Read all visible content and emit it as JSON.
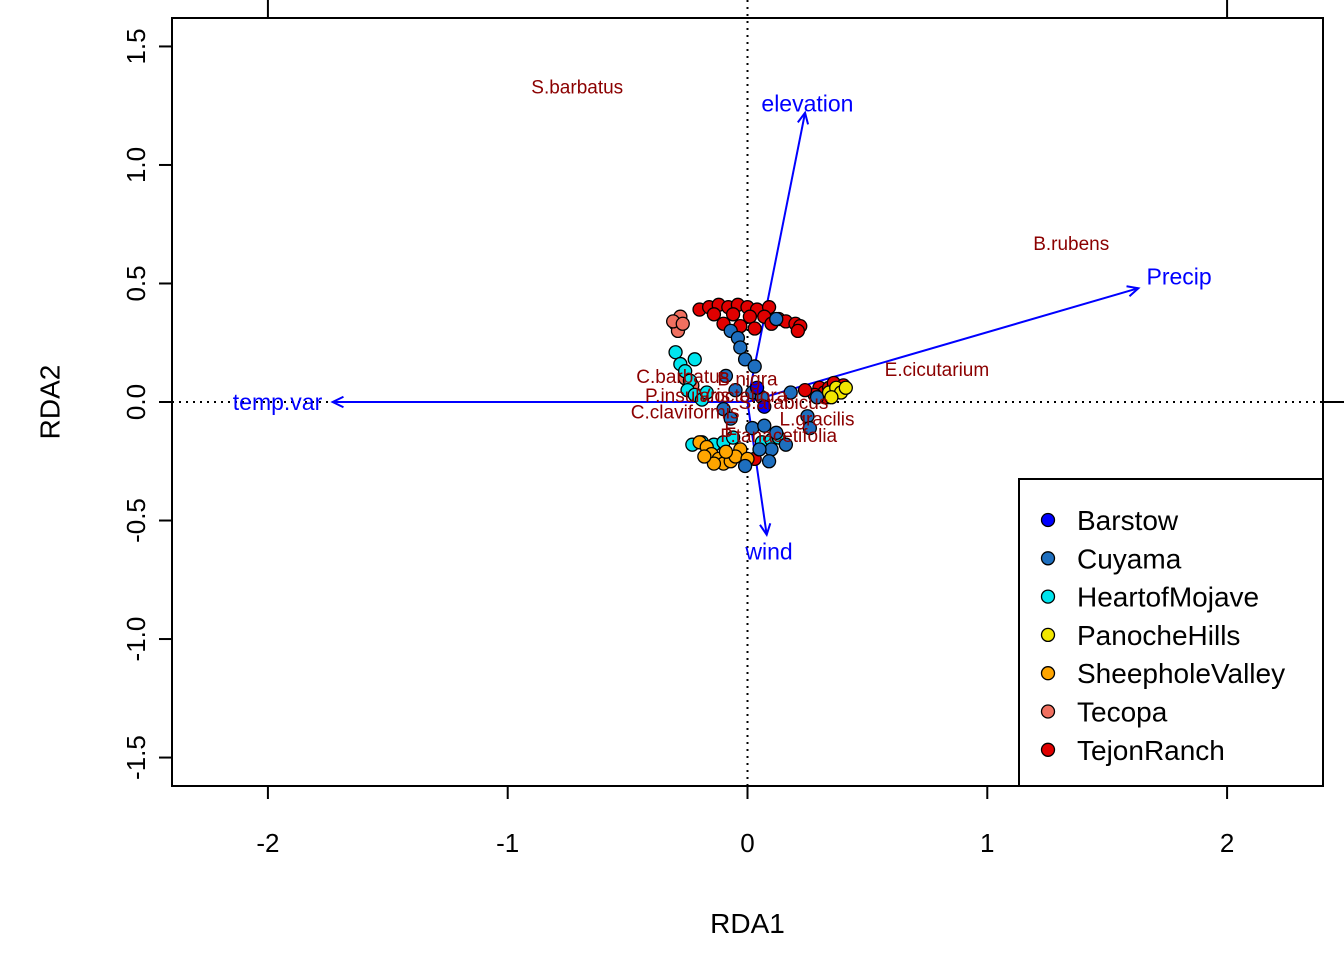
{
  "chart_data": {
    "type": "scatter",
    "subtype": "rda-triplot",
    "xlabel": "RDA1",
    "ylabel": "RDA2",
    "xlim": [
      -2.4,
      2.4
    ],
    "ylim": [
      -1.62,
      1.62
    ],
    "x_ticks": [
      -2,
      -1,
      0,
      1,
      2
    ],
    "y_ticks": [
      -1.5,
      -1.0,
      -0.5,
      0.0,
      0.5,
      1.0,
      1.5
    ],
    "y_tick_labels": [
      "-1.5",
      "-1.0",
      "-0.5",
      "0.0",
      "0.5",
      "1.0",
      "1.5"
    ],
    "grid": false,
    "reference_lines": "dotted lines at x=0 and y=0",
    "colors": {
      "env_vectors": "#0000FF",
      "species_labels": "#8B0000",
      "site_outline": "#000000"
    },
    "env_vectors": [
      {
        "name": "elevation",
        "x": 0.24,
        "y": 1.22,
        "label_x": 0.25,
        "label_y": 1.26
      },
      {
        "name": "Precip",
        "x": 1.63,
        "y": 0.48,
        "label_x": 1.8,
        "label_y": 0.53
      },
      {
        "name": "temp.var",
        "x": -1.73,
        "y": 0.0,
        "label_x": -1.96,
        "label_y": 0.0
      },
      {
        "name": "wind",
        "x": 0.08,
        "y": -0.56,
        "label_x": 0.09,
        "label_y": -0.63
      }
    ],
    "species": [
      {
        "name": "S.barbatus",
        "x": -0.71,
        "y": 1.33
      },
      {
        "name": "B.rubens",
        "x": 1.35,
        "y": 0.67
      },
      {
        "name": "E.cicutarium",
        "x": 0.79,
        "y": 0.14
      },
      {
        "name": "C.barbatus",
        "x": -0.27,
        "y": 0.11
      },
      {
        "name": "B.nigra",
        "x": 0.0,
        "y": 0.1
      },
      {
        "name": "P.insularis",
        "x": -0.25,
        "y": 0.03
      },
      {
        "name": "V.octoflora",
        "x": -0.02,
        "y": 0.03
      },
      {
        "name": "S.arabicus",
        "x": 0.15,
        "y": 0.0
      },
      {
        "name": "C.claviformis",
        "x": -0.26,
        "y": -0.04
      },
      {
        "name": "L.gracilis",
        "x": 0.29,
        "y": -0.07
      },
      {
        "name": "E",
        "x": -0.07,
        "y": -0.11
      },
      {
        "name": "P.tanacetifolia",
        "x": 0.13,
        "y": -0.14
      }
    ],
    "legend": {
      "position": "bottom-right",
      "entries": [
        {
          "name": "Barstow",
          "color": "#0000FF"
        },
        {
          "name": "Cuyama",
          "color": "#1E6FBF"
        },
        {
          "name": "HeartofMojave",
          "color": "#00E5EE"
        },
        {
          "name": "PanocheHills",
          "color": "#F2E600"
        },
        {
          "name": "SheepholeValley",
          "color": "#FFA500"
        },
        {
          "name": "Tecopa",
          "color": "#F07060"
        },
        {
          "name": "TejonRanch",
          "color": "#E00000"
        }
      ]
    },
    "sites": [
      {
        "group": "TejonRanch",
        "points": [
          [
            -0.2,
            0.39
          ],
          [
            -0.16,
            0.4
          ],
          [
            -0.12,
            0.41
          ],
          [
            -0.08,
            0.4
          ],
          [
            -0.04,
            0.41
          ],
          [
            0.0,
            0.4
          ],
          [
            0.04,
            0.39
          ],
          [
            0.09,
            0.4
          ],
          [
            -0.14,
            0.37
          ],
          [
            -0.06,
            0.37
          ],
          [
            0.01,
            0.36
          ],
          [
            0.07,
            0.36
          ],
          [
            0.13,
            0.35
          ],
          [
            -0.1,
            0.33
          ],
          [
            -0.03,
            0.32
          ],
          [
            0.03,
            0.31
          ],
          [
            0.1,
            0.33
          ],
          [
            0.16,
            0.34
          ],
          [
            0.2,
            0.33
          ],
          [
            0.22,
            0.32
          ],
          [
            0.21,
            0.3
          ],
          [
            0.3,
            0.06
          ],
          [
            0.32,
            0.04
          ],
          [
            0.34,
            0.06
          ],
          [
            0.36,
            0.08
          ],
          [
            0.38,
            0.05
          ],
          [
            0.28,
            0.03
          ],
          [
            0.33,
            0.02
          ],
          [
            0.4,
            0.07
          ],
          [
            0.24,
            0.05
          ],
          [
            0.03,
            -0.24
          ]
        ]
      },
      {
        "group": "Tecopa",
        "points": [
          [
            -0.28,
            0.36
          ],
          [
            -0.3,
            0.33
          ],
          [
            -0.29,
            0.3
          ],
          [
            -0.31,
            0.34
          ],
          [
            -0.27,
            0.33
          ],
          [
            -0.26,
            0.1
          ],
          [
            -0.23,
            0.07
          ]
        ]
      },
      {
        "group": "HeartofMojave",
        "points": [
          [
            -0.3,
            0.21
          ],
          [
            -0.28,
            0.16
          ],
          [
            -0.26,
            0.13
          ],
          [
            -0.24,
            0.09
          ],
          [
            -0.22,
            0.18
          ],
          [
            -0.25,
            0.05
          ],
          [
            -0.22,
            0.03
          ],
          [
            -0.19,
            0.01
          ],
          [
            -0.17,
            0.04
          ],
          [
            -0.23,
            -0.18
          ],
          [
            -0.19,
            -0.17
          ],
          [
            -0.14,
            -0.18
          ],
          [
            -0.1,
            -0.17
          ],
          [
            -0.06,
            -0.15
          ],
          [
            0.06,
            -0.17
          ],
          [
            0.1,
            -0.16
          ],
          [
            0.13,
            -0.15
          ]
        ]
      },
      {
        "group": "SheepholeValley",
        "points": [
          [
            -0.2,
            -0.17
          ],
          [
            -0.17,
            -0.19
          ],
          [
            -0.15,
            -0.22
          ],
          [
            -0.12,
            -0.24
          ],
          [
            -0.1,
            -0.26
          ],
          [
            -0.14,
            -0.26
          ],
          [
            -0.07,
            -0.25
          ],
          [
            -0.03,
            -0.2
          ],
          [
            -0.05,
            -0.23
          ],
          [
            0.0,
            -0.24
          ],
          [
            -0.18,
            -0.23
          ],
          [
            -0.09,
            -0.21
          ]
        ]
      },
      {
        "group": "Cuyama",
        "points": [
          [
            -0.07,
            0.3
          ],
          [
            -0.04,
            0.27
          ],
          [
            -0.03,
            0.23
          ],
          [
            -0.01,
            0.18
          ],
          [
            0.03,
            0.15
          ],
          [
            -0.09,
            0.11
          ],
          [
            -0.05,
            0.05
          ],
          [
            0.02,
            0.04
          ],
          [
            0.06,
            0.02
          ],
          [
            -0.1,
            -0.03
          ],
          [
            -0.07,
            -0.07
          ],
          [
            0.02,
            -0.11
          ],
          [
            0.07,
            -0.1
          ],
          [
            0.12,
            -0.13
          ],
          [
            0.1,
            -0.2
          ],
          [
            0.16,
            -0.18
          ],
          [
            -0.01,
            -0.27
          ],
          [
            0.05,
            -0.2
          ],
          [
            0.09,
            -0.25
          ],
          [
            0.25,
            -0.06
          ],
          [
            0.26,
            -0.11
          ],
          [
            0.29,
            0.02
          ],
          [
            0.12,
            0.35
          ],
          [
            0.18,
            0.04
          ]
        ]
      },
      {
        "group": "PanocheHills",
        "points": [
          [
            0.34,
            0.04
          ],
          [
            0.37,
            0.06
          ],
          [
            0.39,
            0.04
          ],
          [
            0.41,
            0.06
          ],
          [
            0.35,
            0.02
          ]
        ]
      },
      {
        "group": "Barstow",
        "points": [
          [
            0.04,
            0.06
          ],
          [
            0.07,
            -0.02
          ]
        ]
      }
    ]
  }
}
